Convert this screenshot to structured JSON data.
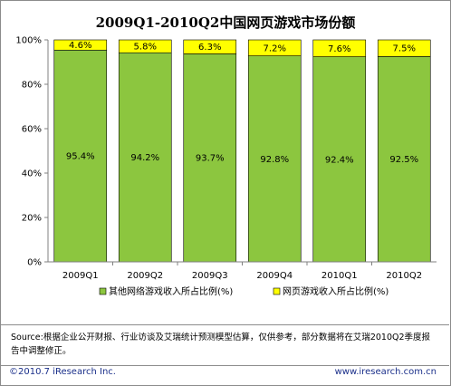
{
  "chart_data": {
    "type": "bar",
    "stacked": true,
    "title": "2009Q1-2010Q2中国网页游戏市场份额",
    "categories": [
      "2009Q1",
      "2009Q2",
      "2009Q3",
      "2009Q4",
      "2010Q1",
      "2010Q2"
    ],
    "series": [
      {
        "name": "其他网络游戏收入所占比例(%)",
        "values": [
          95.4,
          94.2,
          93.7,
          92.8,
          92.4,
          92.5
        ],
        "color": "#8cc63f"
      },
      {
        "name": "网页游戏收入所占比例(%)",
        "values": [
          4.6,
          5.8,
          6.3,
          7.2,
          7.6,
          7.5
        ],
        "color": "#ffff00"
      }
    ],
    "value_labels": [
      [
        "95.4%",
        "94.2%",
        "93.7%",
        "92.8%",
        "92.4%",
        "92.5%"
      ],
      [
        "4.6%",
        "5.8%",
        "6.3%",
        "7.2%",
        "7.6%",
        "7.5%"
      ]
    ],
    "yticks": [
      "0%",
      "20%",
      "40%",
      "60%",
      "80%",
      "100%"
    ],
    "ylim": [
      0,
      100
    ],
    "legend_position": "bottom"
  },
  "note": "Source:根据企业公开财报、行业访谈及艾瑞统计预测模型估算，仅供参考，部分数据将在艾瑞2010Q2季度报告中调整修正。",
  "footer": {
    "copyright": "©2010.7 iResearch Inc.",
    "website": "www.iresearch.com.cn"
  }
}
